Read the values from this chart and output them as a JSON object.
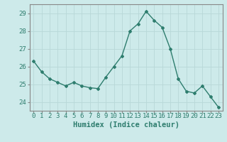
{
  "x": [
    0,
    1,
    2,
    3,
    4,
    5,
    6,
    7,
    8,
    9,
    10,
    11,
    12,
    13,
    14,
    15,
    16,
    17,
    18,
    19,
    20,
    21,
    22,
    23
  ],
  "y": [
    26.3,
    25.7,
    25.3,
    25.1,
    24.9,
    25.1,
    24.9,
    24.8,
    24.75,
    25.4,
    26.0,
    26.6,
    28.0,
    28.4,
    29.1,
    28.6,
    28.2,
    27.0,
    25.3,
    24.6,
    24.5,
    24.9,
    24.3,
    23.7
  ],
  "line_color": "#2e7d6e",
  "bg_color": "#cdeaea",
  "grid_color": "#b8d8d8",
  "xlabel": "Humidex (Indice chaleur)",
  "ylim": [
    23.5,
    29.5
  ],
  "yticks": [
    24,
    25,
    26,
    27,
    28,
    29
  ],
  "xticks": [
    0,
    1,
    2,
    3,
    4,
    5,
    6,
    7,
    8,
    9,
    10,
    11,
    12,
    13,
    14,
    15,
    16,
    17,
    18,
    19,
    20,
    21,
    22,
    23
  ],
  "marker": "D",
  "marker_size": 2.0,
  "line_width": 1.0,
  "xlabel_fontsize": 7.5,
  "tick_fontsize": 6.5,
  "tick_color": "#2e7d6e",
  "axis_color": "#888888",
  "spine_color": "#888888"
}
